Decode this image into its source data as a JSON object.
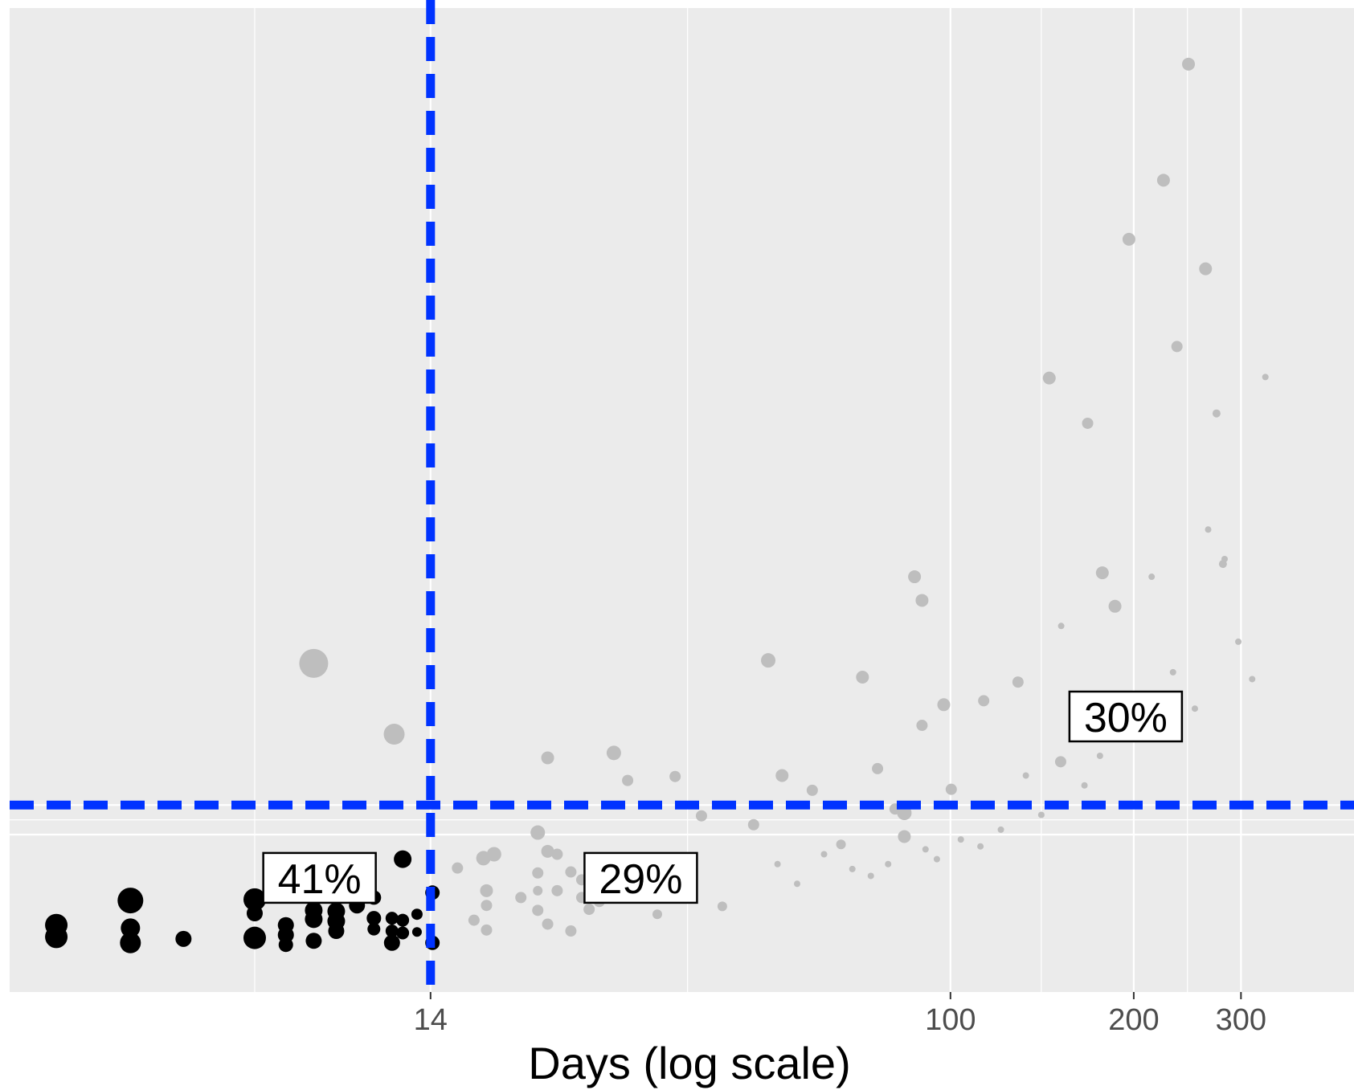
{
  "chart_data": {
    "type": "scatter",
    "title": "",
    "xlabel": "Days (log scale)",
    "ylabel": "",
    "x_scale": "log",
    "xlim": [
      2.85,
      460
    ],
    "ylim": [
      0,
      1
    ],
    "x_ticks": [
      {
        "value": 14,
        "label": "14"
      },
      {
        "value": 100,
        "label": "100"
      },
      {
        "value": 200,
        "label": "200"
      },
      {
        "value": 300,
        "label": "300"
      }
    ],
    "x_minor_gridlines": [
      7.2,
      37,
      141,
      245
    ],
    "y_gridlines": [
      0.16,
      0.19
    ],
    "y_minor_gridlines": [
      0.175
    ],
    "grid": true,
    "reference_lines": {
      "vertical": {
        "value": 14,
        "color": "#0033ff",
        "style": "dashed"
      },
      "horizontal": {
        "value": 0.19,
        "color": "#0033ff",
        "style": "dashed"
      }
    },
    "colors": {
      "panel": "#ebebeb",
      "grid": "#ffffff",
      "series_early": "#000000",
      "series_late": "#bebebe",
      "reference": "#0033ff"
    },
    "annotations": [
      {
        "text": "41%",
        "x": 9.2,
        "y": 0.116
      },
      {
        "text": "29%",
        "x": 31,
        "y": 0.116
      },
      {
        "text": "30%",
        "x": 194,
        "y": 0.28
      }
    ],
    "series": [
      {
        "color": "#000000",
        "points": [
          {
            "x": 3.4,
            "y": 0.068,
            "size": 14
          },
          {
            "x": 3.4,
            "y": 0.056,
            "size": 14
          },
          {
            "x": 4.5,
            "y": 0.093,
            "size": 16
          },
          {
            "x": 4.5,
            "y": 0.065,
            "size": 12
          },
          {
            "x": 4.5,
            "y": 0.05,
            "size": 13
          },
          {
            "x": 5.5,
            "y": 0.054,
            "size": 10
          },
          {
            "x": 7.2,
            "y": 0.094,
            "size": 14
          },
          {
            "x": 7.2,
            "y": 0.08,
            "size": 10
          },
          {
            "x": 7.2,
            "y": 0.055,
            "size": 14
          },
          {
            "x": 8.1,
            "y": 0.068,
            "size": 10
          },
          {
            "x": 8.1,
            "y": 0.058,
            "size": 10
          },
          {
            "x": 8.1,
            "y": 0.048,
            "size": 9
          },
          {
            "x": 9.0,
            "y": 0.083,
            "size": 11
          },
          {
            "x": 9.0,
            "y": 0.074,
            "size": 11
          },
          {
            "x": 9.0,
            "y": 0.052,
            "size": 10
          },
          {
            "x": 9.8,
            "y": 0.082,
            "size": 11
          },
          {
            "x": 9.8,
            "y": 0.072,
            "size": 11
          },
          {
            "x": 9.8,
            "y": 0.062,
            "size": 10
          },
          {
            "x": 10.6,
            "y": 0.088,
            "size": 10
          },
          {
            "x": 11.3,
            "y": 0.096,
            "size": 9
          },
          {
            "x": 11.3,
            "y": 0.075,
            "size": 9
          },
          {
            "x": 11.3,
            "y": 0.064,
            "size": 8
          },
          {
            "x": 12.1,
            "y": 0.075,
            "size": 8
          },
          {
            "x": 12.1,
            "y": 0.062,
            "size": 8
          },
          {
            "x": 12.1,
            "y": 0.05,
            "size": 10
          },
          {
            "x": 12.6,
            "y": 0.135,
            "size": 11
          },
          {
            "x": 12.6,
            "y": 0.073,
            "size": 8
          },
          {
            "x": 12.6,
            "y": 0.06,
            "size": 8
          },
          {
            "x": 13.3,
            "y": 0.079,
            "size": 7
          },
          {
            "x": 13.3,
            "y": 0.061,
            "size": 6
          },
          {
            "x": 14.1,
            "y": 0.101,
            "size": 9
          },
          {
            "x": 14.1,
            "y": 0.05,
            "size": 9
          }
        ]
      },
      {
        "color": "#bebebe",
        "points": [
          {
            "x": 9.0,
            "y": 0.334,
            "size": 18
          },
          {
            "x": 12.2,
            "y": 0.262,
            "size": 13
          },
          {
            "x": 15.5,
            "y": 0.126,
            "size": 7
          },
          {
            "x": 16.5,
            "y": 0.073,
            "size": 7
          },
          {
            "x": 17.1,
            "y": 0.136,
            "size": 9
          },
          {
            "x": 17.3,
            "y": 0.103,
            "size": 8
          },
          {
            "x": 17.3,
            "y": 0.088,
            "size": 7
          },
          {
            "x": 17.3,
            "y": 0.063,
            "size": 7
          },
          {
            "x": 17.8,
            "y": 0.14,
            "size": 9
          },
          {
            "x": 19.7,
            "y": 0.096,
            "size": 7
          },
          {
            "x": 21.0,
            "y": 0.162,
            "size": 9
          },
          {
            "x": 21.0,
            "y": 0.121,
            "size": 7
          },
          {
            "x": 21.0,
            "y": 0.103,
            "size": 6
          },
          {
            "x": 21.0,
            "y": 0.083,
            "size": 7
          },
          {
            "x": 21.8,
            "y": 0.238,
            "size": 8
          },
          {
            "x": 21.8,
            "y": 0.143,
            "size": 8
          },
          {
            "x": 21.8,
            "y": 0.069,
            "size": 7
          },
          {
            "x": 22.6,
            "y": 0.14,
            "size": 7
          },
          {
            "x": 22.6,
            "y": 0.103,
            "size": 7
          },
          {
            "x": 23.8,
            "y": 0.122,
            "size": 7
          },
          {
            "x": 23.8,
            "y": 0.062,
            "size": 7
          },
          {
            "x": 24.8,
            "y": 0.114,
            "size": 7
          },
          {
            "x": 24.8,
            "y": 0.096,
            "size": 7
          },
          {
            "x": 25.5,
            "y": 0.084,
            "size": 7
          },
          {
            "x": 26.5,
            "y": 0.092,
            "size": 7
          },
          {
            "x": 28.0,
            "y": 0.243,
            "size": 9
          },
          {
            "x": 29.5,
            "y": 0.215,
            "size": 7
          },
          {
            "x": 30.4,
            "y": 0.1,
            "size": 6
          },
          {
            "x": 33.0,
            "y": 0.079,
            "size": 6
          },
          {
            "x": 35.3,
            "y": 0.219,
            "size": 7
          },
          {
            "x": 39.0,
            "y": 0.179,
            "size": 7
          },
          {
            "x": 42.2,
            "y": 0.087,
            "size": 6
          },
          {
            "x": 47.5,
            "y": 0.17,
            "size": 7
          },
          {
            "x": 50.2,
            "y": 0.337,
            "size": 9
          },
          {
            "x": 52.9,
            "y": 0.22,
            "size": 8
          },
          {
            "x": 59.3,
            "y": 0.205,
            "size": 7
          },
          {
            "x": 66.1,
            "y": 0.15,
            "size": 6
          },
          {
            "x": 71.7,
            "y": 0.32,
            "size": 8
          },
          {
            "x": 75.9,
            "y": 0.227,
            "size": 7
          },
          {
            "x": 81.1,
            "y": 0.186,
            "size": 7
          },
          {
            "x": 84.0,
            "y": 0.182,
            "size": 9
          },
          {
            "x": 84.0,
            "y": 0.158,
            "size": 8
          },
          {
            "x": 87.3,
            "y": 0.422,
            "size": 8
          },
          {
            "x": 89.8,
            "y": 0.398,
            "size": 8
          },
          {
            "x": 89.8,
            "y": 0.271,
            "size": 7
          },
          {
            "x": 97.5,
            "y": 0.292,
            "size": 8
          },
          {
            "x": 100.3,
            "y": 0.206,
            "size": 7
          },
          {
            "x": 113.4,
            "y": 0.296,
            "size": 7
          },
          {
            "x": 129.1,
            "y": 0.315,
            "size": 7
          },
          {
            "x": 145.3,
            "y": 0.624,
            "size": 8
          },
          {
            "x": 151.7,
            "y": 0.234,
            "size": 7
          },
          {
            "x": 168.0,
            "y": 0.578,
            "size": 7
          },
          {
            "x": 177.6,
            "y": 0.426,
            "size": 8
          },
          {
            "x": 186.3,
            "y": 0.392,
            "size": 8
          },
          {
            "x": 196.4,
            "y": 0.765,
            "size": 8
          },
          {
            "x": 200.0,
            "y": 0.263,
            "size": 6
          },
          {
            "x": 223.8,
            "y": 0.825,
            "size": 8
          },
          {
            "x": 235.5,
            "y": 0.656,
            "size": 7
          },
          {
            "x": 246.0,
            "y": 0.943,
            "size": 8
          },
          {
            "x": 262.4,
            "y": 0.735,
            "size": 8
          },
          {
            "x": 273.5,
            "y": 0.588,
            "size": 5
          },
          {
            "x": 280.2,
            "y": 0.435,
            "size": 5
          }
        ]
      },
      {
        "color": "#bebebe",
        "points": [
          {
            "x": 52.0,
            "y": 0.13,
            "size": 4
          },
          {
            "x": 56.0,
            "y": 0.11,
            "size": 4
          },
          {
            "x": 62.0,
            "y": 0.14,
            "size": 4
          },
          {
            "x": 69.0,
            "y": 0.125,
            "size": 4
          },
          {
            "x": 74.0,
            "y": 0.118,
            "size": 4
          },
          {
            "x": 79.0,
            "y": 0.13,
            "size": 4
          },
          {
            "x": 91.0,
            "y": 0.145,
            "size": 4
          },
          {
            "x": 95.0,
            "y": 0.135,
            "size": 4
          },
          {
            "x": 104.0,
            "y": 0.155,
            "size": 4
          },
          {
            "x": 112.0,
            "y": 0.148,
            "size": 4
          },
          {
            "x": 121.0,
            "y": 0.165,
            "size": 4
          },
          {
            "x": 133.0,
            "y": 0.22,
            "size": 4
          },
          {
            "x": 141.0,
            "y": 0.18,
            "size": 4
          },
          {
            "x": 152.0,
            "y": 0.372,
            "size": 4
          },
          {
            "x": 166.0,
            "y": 0.21,
            "size": 4
          },
          {
            "x": 176.0,
            "y": 0.24,
            "size": 4
          },
          {
            "x": 186.0,
            "y": 0.3,
            "size": 4
          },
          {
            "x": 204.0,
            "y": 0.268,
            "size": 4
          },
          {
            "x": 214.0,
            "y": 0.422,
            "size": 4
          },
          {
            "x": 232.0,
            "y": 0.325,
            "size": 4
          },
          {
            "x": 252.0,
            "y": 0.288,
            "size": 4
          },
          {
            "x": 265.0,
            "y": 0.47,
            "size": 4
          },
          {
            "x": 282.0,
            "y": 0.44,
            "size": 4
          },
          {
            "x": 297.0,
            "y": 0.356,
            "size": 4
          },
          {
            "x": 313.0,
            "y": 0.318,
            "size": 4
          },
          {
            "x": 329.0,
            "y": 0.625,
            "size": 4
          }
        ]
      }
    ]
  }
}
